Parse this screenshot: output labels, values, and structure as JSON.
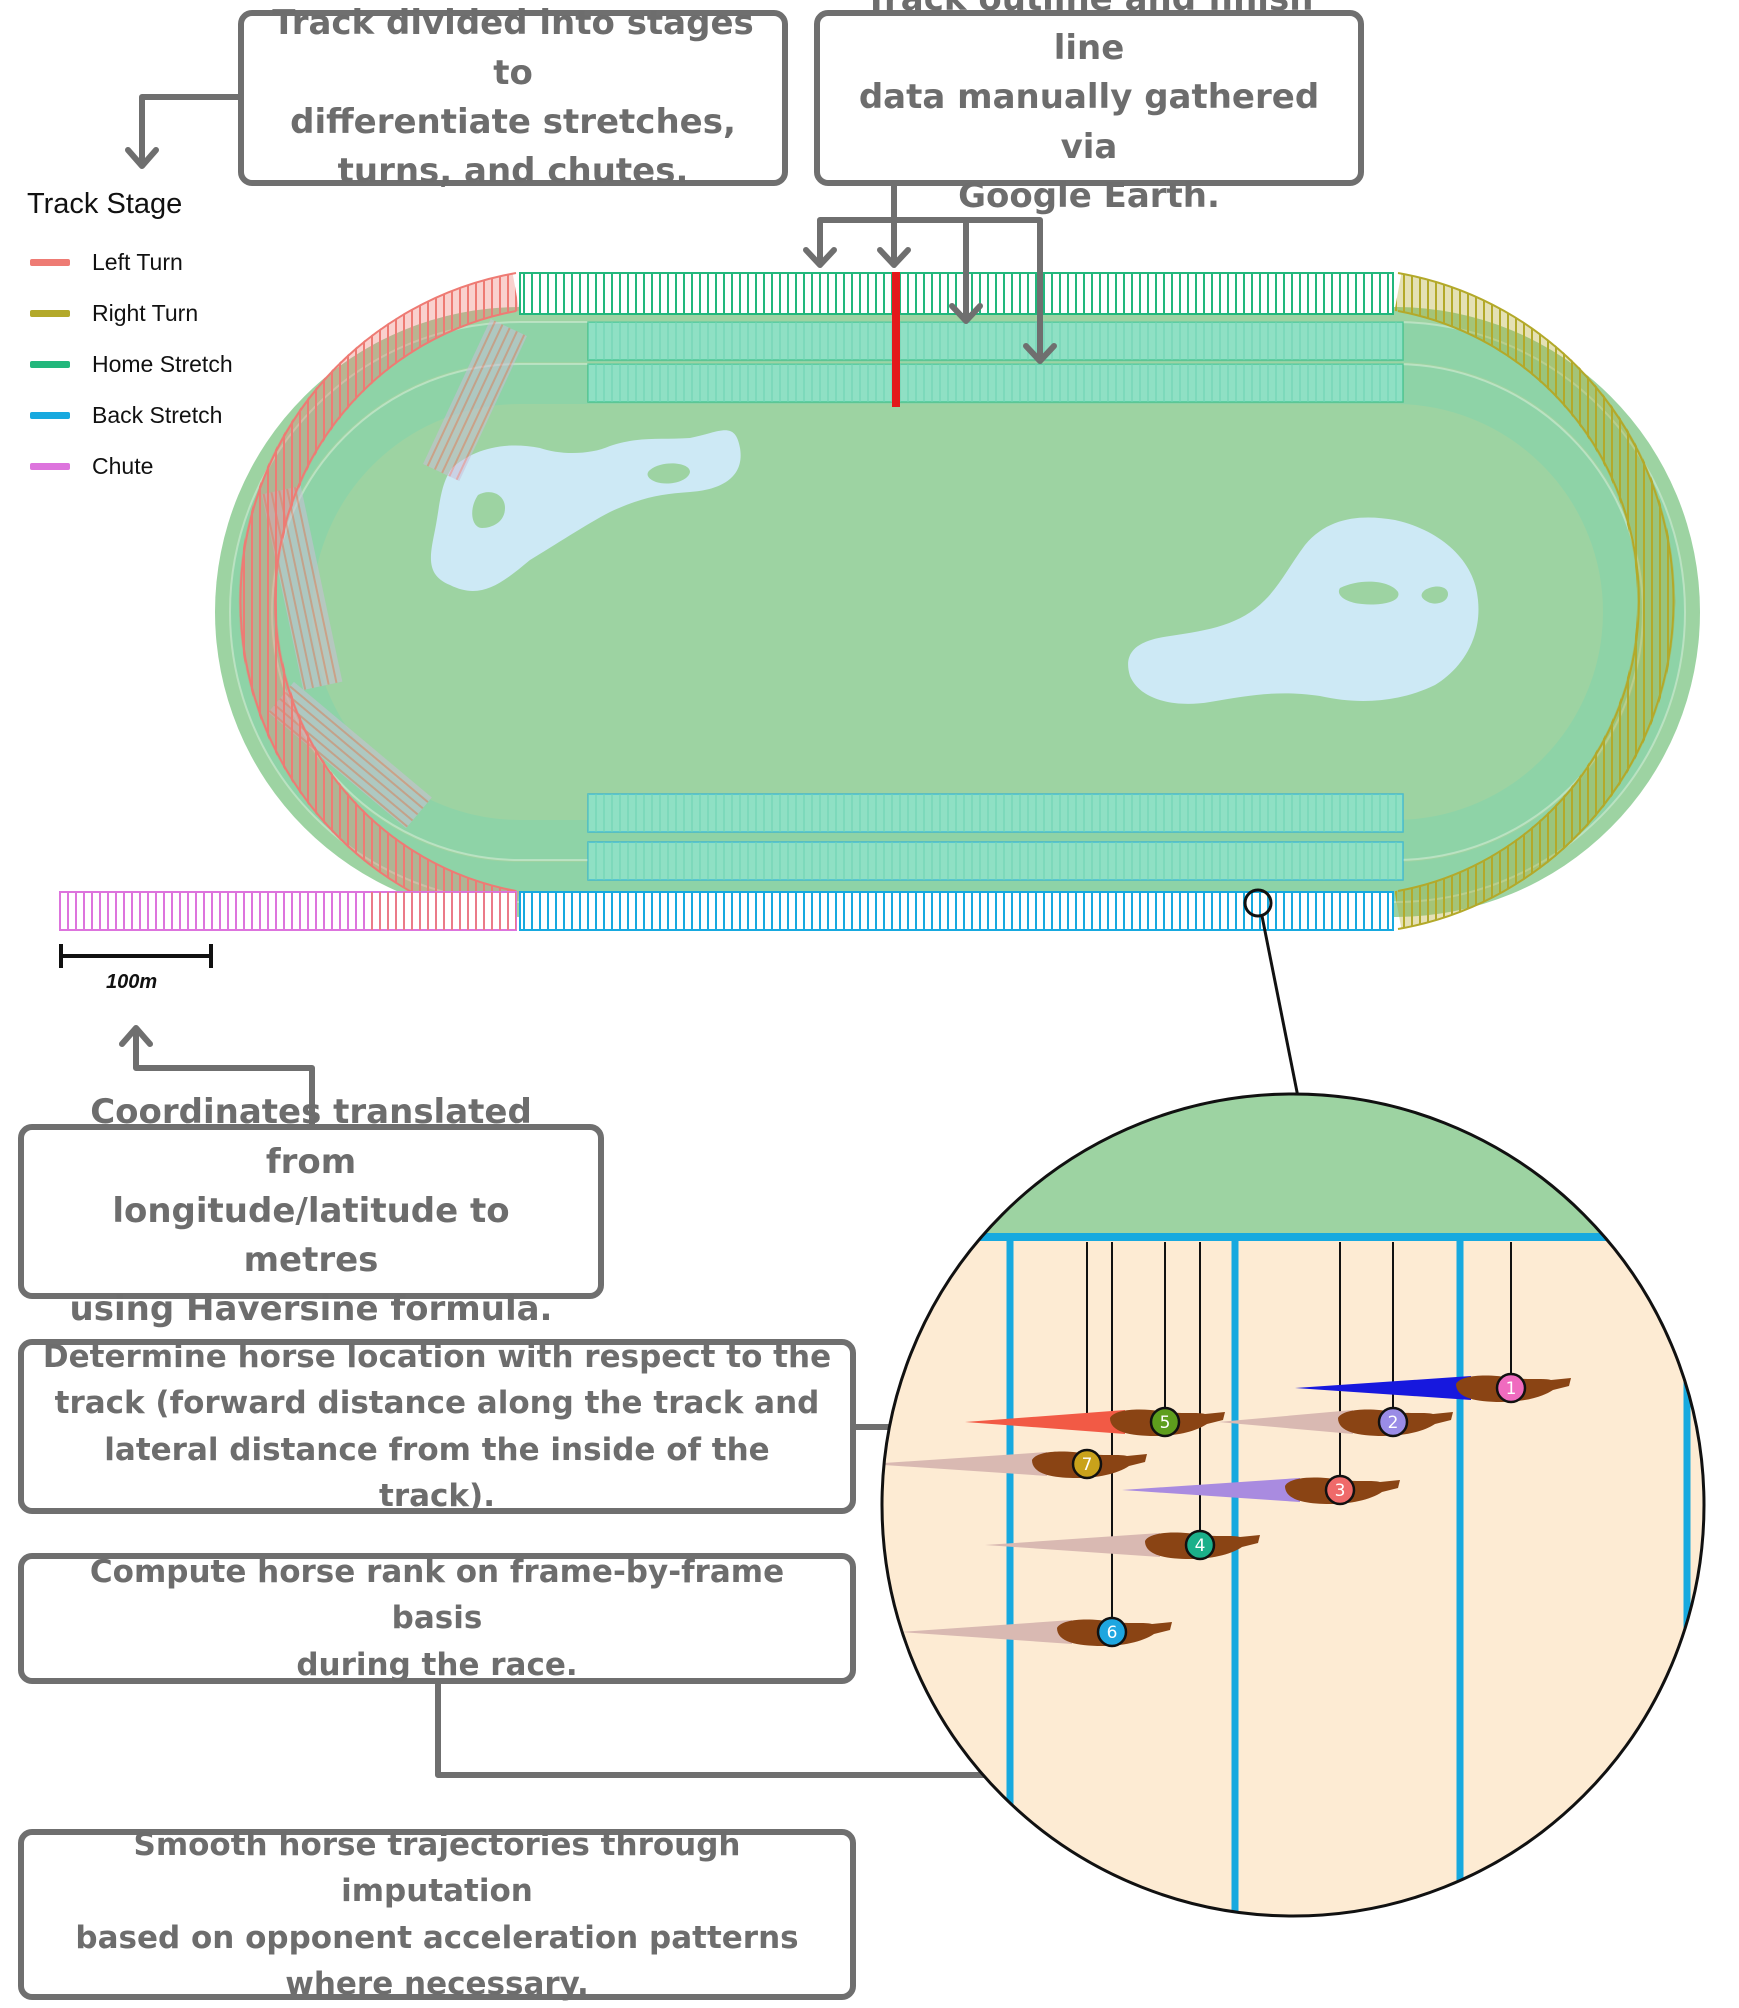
{
  "callouts": {
    "stages": [
      "Track divided into stages to",
      "differentiate stretches,",
      "turns, and chutes."
    ],
    "outline": [
      "Track outline and finish line",
      "data manually gathered via",
      "Google Earth."
    ],
    "coords": [
      "Coordinates translated from",
      "longitude/latitude to metres",
      "using Haversine formula."
    ],
    "location": [
      "Determine horse location with respect to the",
      "track (forward distance along the track and",
      "lateral distance from the inside of the track)."
    ],
    "rank": [
      "Compute horse rank on frame-by-frame basis",
      "during the race."
    ],
    "smooth": [
      "Smooth horse trajectories through imputation",
      "based on opponent acceleration patterns",
      "where necessary."
    ]
  },
  "legend": {
    "title": "Track Stage",
    "items": [
      {
        "label": "Left Turn",
        "color": "#ee7b74"
      },
      {
        "label": "Right Turn",
        "color": "#b3a92a"
      },
      {
        "label": "Home Stretch",
        "color": "#22b77c"
      },
      {
        "label": "Back Stretch",
        "color": "#17a9df"
      },
      {
        "label": "Chute",
        "color": "#dd74dd"
      }
    ]
  },
  "scale_bar": {
    "label": "100m"
  },
  "colors": {
    "infield": "#9dd3a2",
    "lake": "#cde9f5",
    "finish_line": "#e3191b",
    "arrow": "#6f6f6f",
    "zoom_ground": "#fdebd3"
  },
  "horses": [
    {
      "number": "1",
      "badge": "#f06bbf",
      "trail": "#1718de"
    },
    {
      "number": "2",
      "badge": "#9a8ce6",
      "trail": "#d9b9b2"
    },
    {
      "number": "3",
      "badge": "#ef6a6a",
      "trail": "#a98be0"
    },
    {
      "number": "4",
      "badge": "#1bb08a",
      "trail": "#d9b9b2"
    },
    {
      "number": "5",
      "badge": "#5e9e1d",
      "trail": "#f25a45"
    },
    {
      "number": "6",
      "badge": "#1ea6e0",
      "trail": "#d9b9b2"
    },
    {
      "number": "7",
      "badge": "#c9a21b",
      "trail": "#d9b9b2"
    }
  ]
}
